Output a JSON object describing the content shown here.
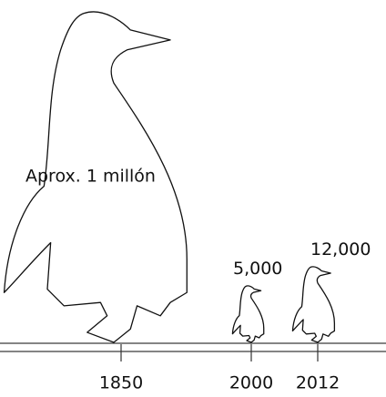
{
  "chart_data": {
    "type": "pictogram",
    "categories": [
      "1850",
      "2000",
      "2012"
    ],
    "values": [
      1000000,
      5000,
      12000
    ],
    "value_labels": [
      "Aprox. 1 millón",
      "5,000",
      "12,000"
    ],
    "color": "#ffffff"
  }
}
